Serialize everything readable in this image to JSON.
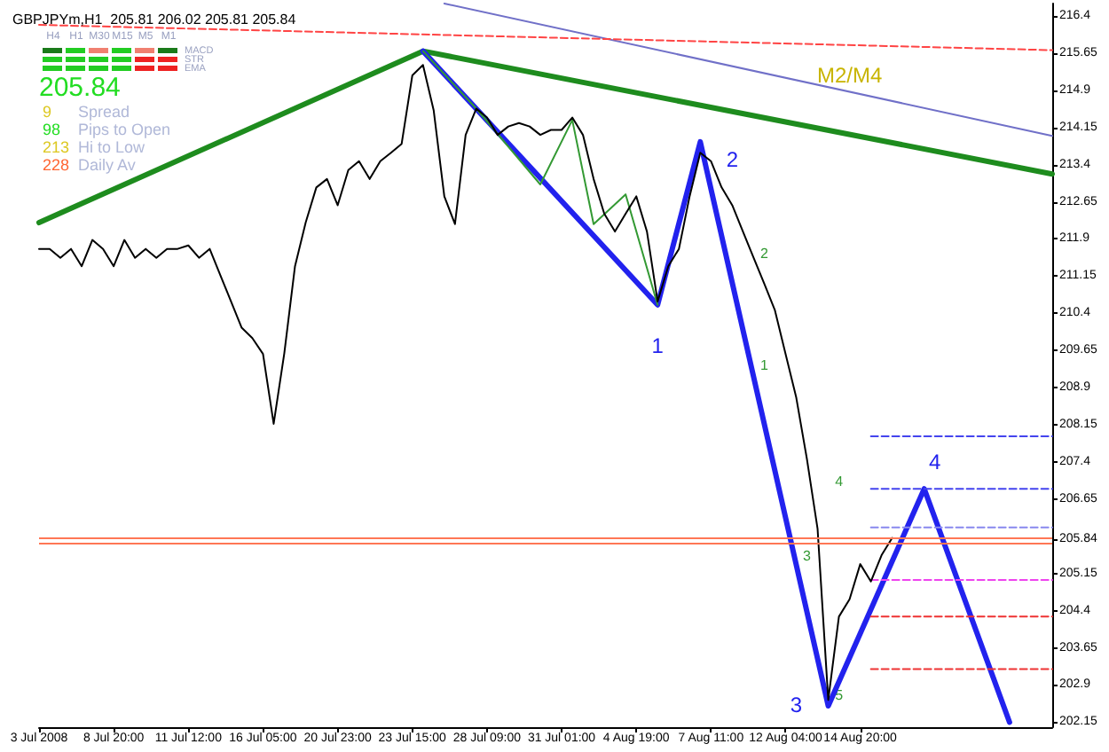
{
  "chart_data": {
    "type": "line",
    "title": "GBPJPYm,H1  205.81 206.02 205.81 205.84",
    "categories": [
      "3 Jul 2008",
      null,
      null,
      null,
      null,
      null,
      null,
      "8 Jul 20:00",
      null,
      null,
      null,
      null,
      null,
      null,
      "11 Jul 12:00",
      null,
      null,
      null,
      null,
      null,
      null,
      "16 Jul 05:00",
      null,
      null,
      null,
      null,
      null,
      null,
      "20 Jul 23:00",
      null,
      null,
      null,
      null,
      null,
      null,
      "23 Jul 15:00",
      null,
      null,
      null,
      null,
      null,
      null,
      "28 Jul 09:00",
      null,
      null,
      null,
      null,
      null,
      null,
      "31 Jul 01:00",
      null,
      null,
      null,
      null,
      null,
      null,
      "4 Aug 19:00",
      null,
      null,
      null,
      null,
      null,
      null,
      "7 Aug 11:00",
      null,
      null,
      null,
      null,
      null,
      null,
      "12 Aug 04:00",
      null,
      null,
      null,
      null,
      null,
      null,
      "14 Aug 20:00",
      null,
      null,
      null,
      null,
      null,
      null,
      null,
      null,
      null,
      null,
      null,
      null,
      null,
      null,
      null,
      null,
      null,
      null
    ],
    "ylim": [
      202.05,
      216.65
    ],
    "yticks": [
      216.4,
      215.65,
      214.9,
      214.15,
      213.4,
      212.65,
      211.9,
      211.15,
      210.4,
      209.65,
      208.9,
      208.15,
      207.4,
      206.65,
      205.84,
      205.15,
      204.4,
      203.65,
      202.9,
      202.15
    ],
    "grid": false,
    "marker": "none",
    "line_style": "solid",
    "series": [
      {
        "color": "#000000",
        "values": [
          211.7,
          211.7,
          211.52,
          211.7,
          211.35,
          211.88,
          211.7,
          211.35,
          211.88,
          211.52,
          211.7,
          211.52,
          211.7,
          211.7,
          211.77,
          211.52,
          211.7,
          211.17,
          210.64,
          210.11,
          209.9,
          209.58,
          208.17,
          209.6,
          211.35,
          212.23,
          212.94,
          213.11,
          212.58,
          213.29,
          213.47,
          213.11,
          213.47,
          213.64,
          213.82,
          215.2,
          215.41,
          214.5,
          212.76,
          212.2,
          214.0,
          214.53,
          214.35,
          214.0,
          214.17,
          214.24,
          214.17,
          214.0,
          214.1,
          214.1,
          214.35,
          214.0,
          213.11,
          212.41,
          212.05,
          212.41,
          212.76,
          212.05,
          210.64,
          211.35,
          211.7,
          212.76,
          213.64,
          213.47,
          212.94,
          212.58,
          212.05,
          211.52,
          211.0,
          210.46,
          209.58,
          208.7,
          207.46,
          206.05,
          202.6,
          204.28,
          204.63,
          205.34,
          204.99,
          205.52,
          205.87,
          null,
          null,
          null,
          null,
          null,
          null,
          null,
          null,
          null,
          null,
          null,
          null,
          null,
          null,
          null
        ]
      },
      {
        "color": "#1e8c1e",
        "values": [
          212.23,
          null,
          null,
          null,
          null,
          null,
          null,
          null,
          null,
          null,
          null,
          null,
          null,
          null,
          null,
          null,
          null,
          null,
          null,
          null,
          null,
          null,
          null,
          null,
          null,
          null,
          null,
          null,
          null,
          null,
          null,
          null,
          null,
          null,
          null,
          null,
          215.69,
          null,
          null,
          null,
          null,
          null,
          null,
          null,
          null,
          null,
          null,
          null,
          null,
          null,
          null,
          null,
          null,
          null,
          null,
          null,
          null,
          null,
          null,
          null,
          null,
          null,
          null,
          null,
          null,
          null,
          null,
          null,
          null,
          null,
          null,
          null,
          null,
          null,
          null,
          null,
          null,
          null,
          null,
          null,
          null,
          null,
          null,
          null,
          null,
          null,
          null,
          null,
          null,
          null,
          null,
          null,
          null,
          null,
          null,
          213.21
        ]
      },
      {
        "color": "#2222ee",
        "values": [
          null,
          null,
          null,
          null,
          null,
          null,
          null,
          null,
          null,
          null,
          null,
          null,
          null,
          null,
          null,
          null,
          null,
          null,
          null,
          null,
          null,
          null,
          null,
          null,
          null,
          null,
          null,
          null,
          null,
          null,
          null,
          null,
          null,
          null,
          null,
          null,
          215.69,
          null,
          null,
          null,
          null,
          null,
          null,
          null,
          null,
          null,
          null,
          null,
          null,
          null,
          null,
          null,
          null,
          null,
          null,
          null,
          null,
          null,
          210.57,
          null,
          null,
          null,
          213.86,
          null,
          null,
          null,
          null,
          null,
          null,
          null,
          null,
          null,
          null,
          null,
          202.48,
          null,
          null,
          null,
          null,
          null,
          null,
          null,
          null,
          206.86,
          null,
          null,
          null,
          null,
          null,
          null,
          null,
          202.15,
          null,
          null,
          null,
          null
        ]
      },
      {
        "color": "#7070c8",
        "values": [
          null,
          null,
          null,
          null,
          null,
          null,
          null,
          null,
          null,
          null,
          null,
          null,
          null,
          null,
          null,
          null,
          null,
          null,
          null,
          null,
          null,
          null,
          null,
          null,
          null,
          null,
          null,
          null,
          null,
          null,
          null,
          null,
          null,
          null,
          null,
          null,
          null,
          null,
          216.65,
          null,
          null,
          null,
          null,
          null,
          null,
          null,
          null,
          null,
          null,
          null,
          null,
          null,
          null,
          null,
          null,
          null,
          null,
          null,
          null,
          null,
          null,
          null,
          null,
          null,
          null,
          null,
          null,
          null,
          null,
          null,
          null,
          null,
          null,
          null,
          null,
          null,
          null,
          null,
          null,
          null,
          null,
          null,
          null,
          null,
          null,
          null,
          null,
          null,
          null,
          null,
          null,
          null,
          null,
          null,
          null,
          213.98
        ]
      },
      {
        "color": "#ff4444",
        "line_style": "dashed",
        "values": [
          216.22,
          null,
          null,
          null,
          null,
          null,
          null,
          null,
          null,
          null,
          null,
          null,
          null,
          null,
          null,
          null,
          null,
          null,
          null,
          null,
          null,
          null,
          null,
          null,
          null,
          null,
          null,
          null,
          null,
          null,
          null,
          null,
          null,
          null,
          null,
          null,
          null,
          null,
          null,
          null,
          null,
          null,
          null,
          null,
          null,
          null,
          null,
          null,
          null,
          null,
          null,
          null,
          null,
          null,
          null,
          null,
          null,
          null,
          null,
          null,
          null,
          null,
          null,
          null,
          null,
          null,
          null,
          null,
          null,
          null,
          null,
          null,
          null,
          null,
          null,
          null,
          null,
          null,
          null,
          null,
          null,
          null,
          null,
          null,
          null,
          null,
          null,
          null,
          null,
          null,
          null,
          null,
          null,
          null,
          null,
          215.71
        ]
      },
      {
        "color": "#339933",
        "values": [
          null,
          null,
          null,
          null,
          null,
          null,
          null,
          null,
          null,
          null,
          null,
          null,
          null,
          null,
          null,
          null,
          null,
          null,
          null,
          null,
          null,
          null,
          null,
          null,
          null,
          null,
          null,
          null,
          null,
          null,
          null,
          null,
          null,
          null,
          null,
          null,
          215.69,
          null,
          null,
          null,
          null,
          214.53,
          null,
          null,
          null,
          null,
          null,
          213.0,
          null,
          null,
          214.3,
          null,
          212.2,
          null,
          null,
          212.8,
          null,
          null,
          210.57,
          null,
          null,
          null,
          null,
          null,
          null,
          null,
          null,
          null,
          null,
          null,
          null,
          null,
          null,
          null,
          null,
          null,
          null,
          null,
          null,
          null,
          null,
          null,
          null,
          null,
          null,
          null,
          null,
          null,
          null,
          null,
          null,
          null,
          null,
          null,
          null,
          null
        ]
      },
      {
        "color": "#4444ee",
        "line_style": "dashed",
        "values": [
          null,
          null,
          null,
          null,
          null,
          null,
          null,
          null,
          null,
          null,
          null,
          null,
          null,
          null,
          null,
          null,
          null,
          null,
          null,
          null,
          null,
          null,
          null,
          null,
          null,
          null,
          null,
          null,
          null,
          null,
          null,
          null,
          null,
          null,
          null,
          null,
          null,
          null,
          null,
          null,
          null,
          null,
          null,
          null,
          null,
          null,
          null,
          null,
          null,
          null,
          null,
          null,
          null,
          null,
          null,
          null,
          null,
          null,
          null,
          null,
          null,
          null,
          null,
          null,
          null,
          null,
          null,
          null,
          null,
          null,
          null,
          null,
          null,
          null,
          null,
          null,
          null,
          null,
          207.92,
          null,
          null,
          null,
          null,
          null,
          null,
          null,
          null,
          null,
          null,
          null,
          null,
          null,
          null,
          null,
          null,
          207.92
        ]
      },
      {
        "color": "#4444ee",
        "line_style": "dashed",
        "values": [
          null,
          null,
          null,
          null,
          null,
          null,
          null,
          null,
          null,
          null,
          null,
          null,
          null,
          null,
          null,
          null,
          null,
          null,
          null,
          null,
          null,
          null,
          null,
          null,
          null,
          null,
          null,
          null,
          null,
          null,
          null,
          null,
          null,
          null,
          null,
          null,
          null,
          null,
          null,
          null,
          null,
          null,
          null,
          null,
          null,
          null,
          null,
          null,
          null,
          null,
          null,
          null,
          null,
          null,
          null,
          null,
          null,
          null,
          null,
          null,
          null,
          null,
          null,
          null,
          null,
          null,
          null,
          null,
          null,
          null,
          null,
          null,
          null,
          null,
          null,
          null,
          null,
          null,
          206.86,
          null,
          null,
          null,
          null,
          null,
          null,
          null,
          null,
          null,
          null,
          null,
          null,
          null,
          null,
          null,
          null,
          206.86
        ]
      },
      {
        "color": "#8888ee",
        "line_style": "dashed",
        "values": [
          null,
          null,
          null,
          null,
          null,
          null,
          null,
          null,
          null,
          null,
          null,
          null,
          null,
          null,
          null,
          null,
          null,
          null,
          null,
          null,
          null,
          null,
          null,
          null,
          null,
          null,
          null,
          null,
          null,
          null,
          null,
          null,
          null,
          null,
          null,
          null,
          null,
          null,
          null,
          null,
          null,
          null,
          null,
          null,
          null,
          null,
          null,
          null,
          null,
          null,
          null,
          null,
          null,
          null,
          null,
          null,
          null,
          null,
          null,
          null,
          null,
          null,
          null,
          null,
          null,
          null,
          null,
          null,
          null,
          null,
          null,
          null,
          null,
          null,
          null,
          null,
          null,
          null,
          206.08,
          null,
          null,
          null,
          null,
          null,
          null,
          null,
          null,
          null,
          null,
          null,
          null,
          null,
          null,
          null,
          null,
          206.08
        ]
      },
      {
        "color": "#ee44ee",
        "line_style": "dashed",
        "values": [
          null,
          null,
          null,
          null,
          null,
          null,
          null,
          null,
          null,
          null,
          null,
          null,
          null,
          null,
          null,
          null,
          null,
          null,
          null,
          null,
          null,
          null,
          null,
          null,
          null,
          null,
          null,
          null,
          null,
          null,
          null,
          null,
          null,
          null,
          null,
          null,
          null,
          null,
          null,
          null,
          null,
          null,
          null,
          null,
          null,
          null,
          null,
          null,
          null,
          null,
          null,
          null,
          null,
          null,
          null,
          null,
          null,
          null,
          null,
          null,
          null,
          null,
          null,
          null,
          null,
          null,
          null,
          null,
          null,
          null,
          null,
          null,
          null,
          null,
          null,
          null,
          null,
          null,
          205.02,
          null,
          null,
          null,
          null,
          null,
          null,
          null,
          null,
          null,
          null,
          null,
          null,
          null,
          null,
          null,
          null,
          205.02
        ]
      },
      {
        "color": "#ee3333",
        "line_style": "dashed",
        "values": [
          null,
          null,
          null,
          null,
          null,
          null,
          null,
          null,
          null,
          null,
          null,
          null,
          null,
          null,
          null,
          null,
          null,
          null,
          null,
          null,
          null,
          null,
          null,
          null,
          null,
          null,
          null,
          null,
          null,
          null,
          null,
          null,
          null,
          null,
          null,
          null,
          null,
          null,
          null,
          null,
          null,
          null,
          null,
          null,
          null,
          null,
          null,
          null,
          null,
          null,
          null,
          null,
          null,
          null,
          null,
          null,
          null,
          null,
          null,
          null,
          null,
          null,
          null,
          null,
          null,
          null,
          null,
          null,
          null,
          null,
          null,
          null,
          null,
          null,
          null,
          null,
          null,
          null,
          204.28,
          null,
          null,
          null,
          null,
          null,
          null,
          null,
          null,
          null,
          null,
          null,
          null,
          null,
          null,
          null,
          null,
          204.28
        ]
      },
      {
        "color": "#ee3333",
        "line_style": "dashed",
        "values": [
          null,
          null,
          null,
          null,
          null,
          null,
          null,
          null,
          null,
          null,
          null,
          null,
          null,
          null,
          null,
          null,
          null,
          null,
          null,
          null,
          null,
          null,
          null,
          null,
          null,
          null,
          null,
          null,
          null,
          null,
          null,
          null,
          null,
          null,
          null,
          null,
          null,
          null,
          null,
          null,
          null,
          null,
          null,
          null,
          null,
          null,
          null,
          null,
          null,
          null,
          null,
          null,
          null,
          null,
          null,
          null,
          null,
          null,
          null,
          null,
          null,
          null,
          null,
          null,
          null,
          null,
          null,
          null,
          null,
          null,
          null,
          null,
          null,
          null,
          null,
          null,
          null,
          null,
          203.22,
          null,
          null,
          null,
          null,
          null,
          null,
          null,
          null,
          null,
          null,
          null,
          null,
          null,
          null,
          null,
          null,
          203.22
        ]
      }
    ],
    "ref_lines": [
      {
        "axis": "y",
        "value": 205.87,
        "color": "#ff7755"
      },
      {
        "axis": "y",
        "value": 205.77,
        "color": "#ff7755"
      }
    ],
    "annotations": [
      "H4",
      "H1",
      "M30",
      "M15",
      "M5",
      "M1",
      "MACD",
      "STR",
      "EMA",
      "205.84",
      "9",
      "Spread",
      "98",
      "Pips to Open",
      "213",
      "Hi to Low",
      "228",
      "Daily Av",
      "1",
      "2",
      "3",
      "4",
      "1",
      "2",
      "3",
      "4",
      "5",
      "M2/M4"
    ]
  }
}
